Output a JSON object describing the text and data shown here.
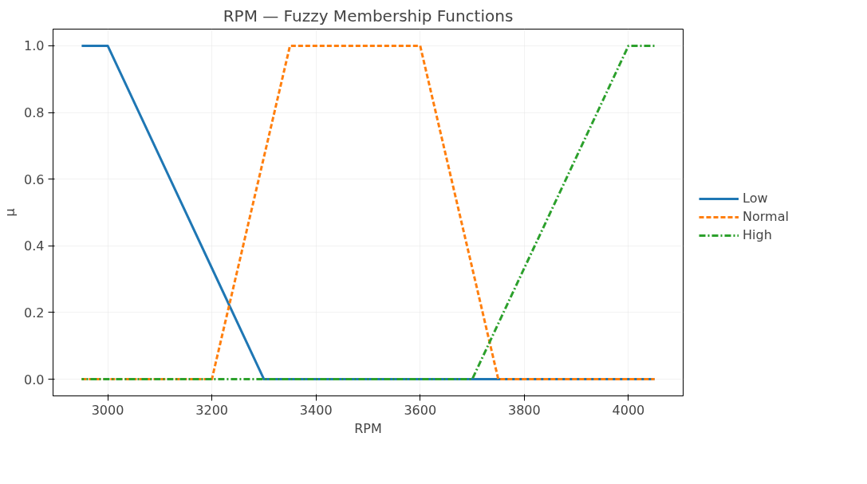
{
  "chart_data": {
    "type": "line",
    "title": "RPM — Fuzzy Membership Functions",
    "xlabel": "RPM",
    "ylabel": "μ",
    "xlim": [
      2895,
      4105
    ],
    "ylim": [
      -0.05,
      1.05
    ],
    "xticks": [
      3000,
      3200,
      3400,
      3600,
      3800,
      4000
    ],
    "yticks": [
      {
        "value": 0,
        "label": "0.0"
      },
      {
        "value": 0.2,
        "label": "0.2"
      },
      {
        "value": 0.4,
        "label": "0.4"
      },
      {
        "value": 0.6,
        "label": "0.6"
      },
      {
        "value": 0.8,
        "label": "0.8"
      },
      {
        "value": 1,
        "label": "1.0"
      }
    ],
    "grid": true,
    "legend": "right",
    "marker": "none",
    "series": [
      {
        "name": "Low",
        "color": "#1f77b4",
        "line_style": "solid",
        "x": [
          2950,
          3000,
          3300,
          4050
        ],
        "values": [
          1,
          1,
          0,
          0
        ]
      },
      {
        "name": "Normal",
        "color": "#ff7f0e",
        "line_style": "dashed",
        "x": [
          2950,
          3200,
          3350,
          3600,
          3750,
          4050
        ],
        "values": [
          0,
          0,
          1,
          1,
          0,
          0
        ]
      },
      {
        "name": "High",
        "color": "#2ca02c",
        "line_style": "dashdot",
        "x": [
          2950,
          3700,
          4000,
          4050
        ],
        "values": [
          0,
          0,
          1,
          1
        ]
      }
    ]
  }
}
